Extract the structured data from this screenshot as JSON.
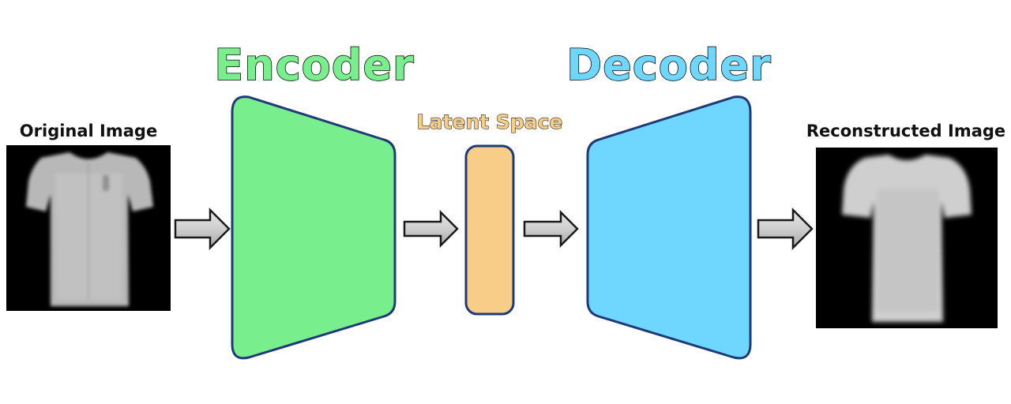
{
  "labels": {
    "original": "Original Image",
    "encoder": "Encoder",
    "latent": "Latent Space",
    "decoder": "Decoder",
    "reconstructed": "Reconstructed Image"
  },
  "colors": {
    "encoder_fill": "#78EE8C",
    "decoder_fill": "#6FD6FD",
    "latent_fill": "#F7CD87",
    "shape_stroke": "#1E3A78",
    "encoder_title": "#78EE8C",
    "decoder_title": "#6FD6FD",
    "latent_title": "#F7CD87",
    "arrow_fill": "#C8C8C8"
  },
  "icons": {
    "arrow": "right-arrow-icon",
    "original_image": "tshirt-image",
    "reconstructed_image": "tshirt-image"
  }
}
